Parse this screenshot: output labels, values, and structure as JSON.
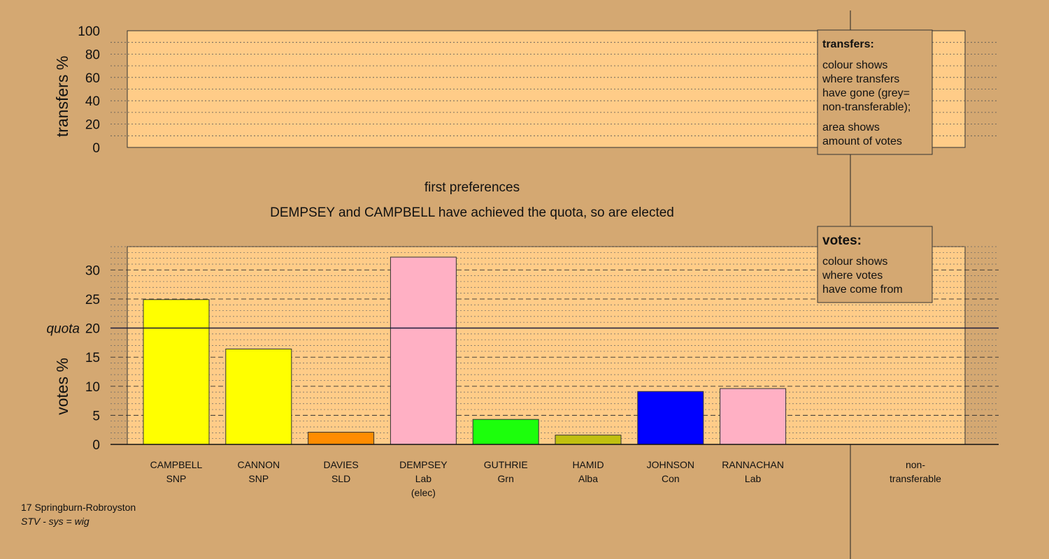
{
  "headings": {
    "stage": "first preferences",
    "message": "DEMPSEY and CAMPBELL have achieved the quota, so are elected"
  },
  "transfers_panel": {
    "ylabel": "transfers %",
    "ticks": [
      "0",
      "20",
      "40",
      "60",
      "80",
      "100"
    ],
    "legend": {
      "title": "transfers:",
      "lines1": [
        "colour shows",
        "where transfers",
        "have gone (grey=",
        "non-transferable);"
      ],
      "lines2": [
        "area shows",
        "amount of votes"
      ]
    }
  },
  "votes_panel": {
    "ylabel": "votes %",
    "quota_label": "quota",
    "ticks": [
      "0",
      "5",
      "10",
      "15",
      "20",
      "25",
      "30"
    ],
    "legend": {
      "title": "votes:",
      "lines": [
        "colour shows",
        "where votes",
        "have come from"
      ]
    }
  },
  "footer": {
    "line1": "17 Springburn-Robroyston",
    "line2": "STV - sys = wig"
  },
  "chart_data": [
    {
      "type": "bar",
      "panel": "transfers",
      "ylabel": "transfers %",
      "ylim": [
        0,
        100
      ],
      "values": []
    },
    {
      "type": "bar",
      "panel": "votes",
      "ylabel": "votes %",
      "ylim": [
        0,
        34
      ],
      "quota": 20,
      "grid": true,
      "categories": [
        {
          "name": "CAMPBELL",
          "party": "SNP",
          "note": ""
        },
        {
          "name": "CANNON",
          "party": "SNP",
          "note": ""
        },
        {
          "name": "DAVIES",
          "party": "SLD",
          "note": ""
        },
        {
          "name": "DEMPSEY",
          "party": "Lab",
          "note": "(elec)"
        },
        {
          "name": "GUTHRIE",
          "party": "Grn",
          "note": ""
        },
        {
          "name": "HAMID",
          "party": "Alba",
          "note": ""
        },
        {
          "name": "JOHNSON",
          "party": "Con",
          "note": ""
        },
        {
          "name": "RANNACHAN",
          "party": "Lab",
          "note": ""
        }
      ],
      "values": [
        24.9,
        16.4,
        2.1,
        32.2,
        4.3,
        1.6,
        9.1,
        9.6
      ],
      "colors": [
        "#ffff00",
        "#ffff00",
        "#ff8c00",
        "#ffb0c4",
        "#1cff0c",
        "#c0c010",
        "#0000ff",
        "#ffb0c4"
      ],
      "extra_category": {
        "line1": "non-",
        "line2": "transferable",
        "value": 0
      }
    }
  ]
}
